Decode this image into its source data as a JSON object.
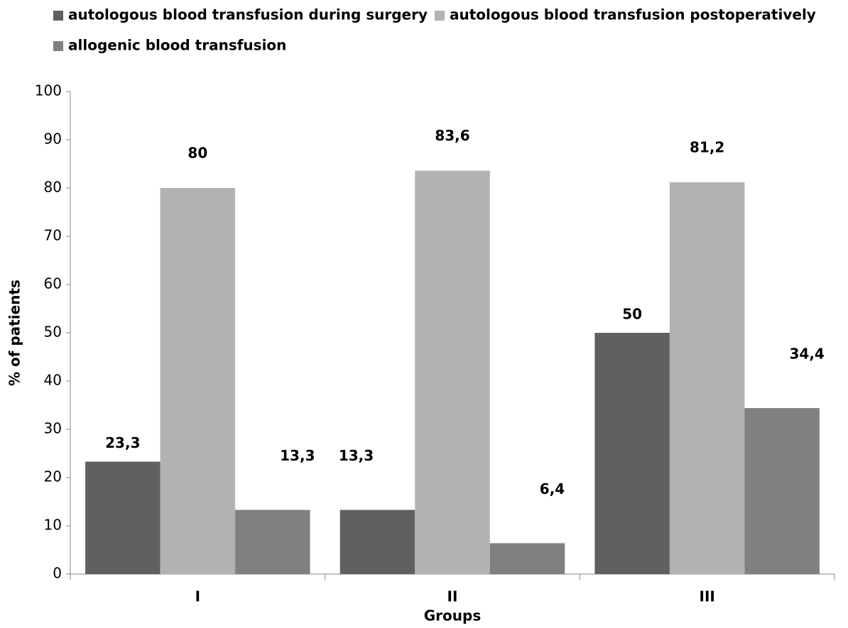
{
  "chart_data": {
    "type": "bar",
    "categories": [
      "I",
      "II",
      "III"
    ],
    "series": [
      {
        "name": "autologous blood transfusion during surgery",
        "color": "#606060",
        "values": [
          23.3,
          13.3,
          50
        ],
        "value_labels": [
          "23,3",
          "13,3",
          "50"
        ]
      },
      {
        "name": "autologous blood transfusion postoperatively",
        "color": "#b2b2b2",
        "values": [
          80,
          83.6,
          81.2
        ],
        "value_labels": [
          "80",
          "83,6",
          "81,2"
        ]
      },
      {
        "name": "allogenic blood transfusion",
        "color": "#808080",
        "values": [
          13.3,
          6.4,
          34.4
        ],
        "value_labels": [
          "13,3",
          "6,4",
          "34,4"
        ]
      }
    ],
    "xlabel": "Groups",
    "ylabel": "% of patients",
    "ylim": [
      0,
      100
    ],
    "yticks": [
      0,
      10,
      20,
      30,
      40,
      50,
      60,
      70,
      80,
      90,
      100
    ],
    "legend": "top"
  }
}
